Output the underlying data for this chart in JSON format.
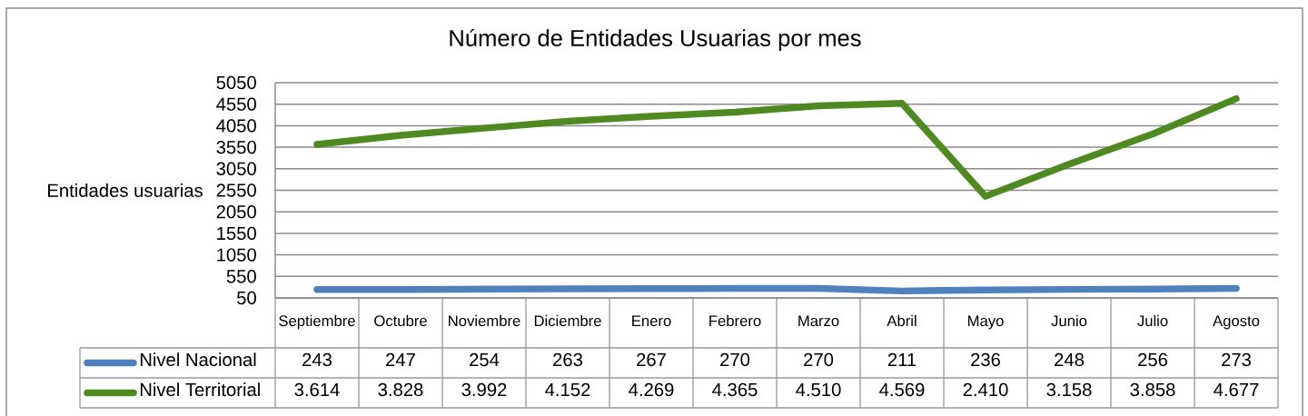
{
  "chart_data": {
    "type": "line",
    "title": "Número de Entidades Usuarias por mes",
    "ylabel": "Entidades usuarias",
    "categories": [
      "Septiembre",
      "Octubre",
      "Noviembre",
      "Diciembre",
      "Enero",
      "Febrero",
      "Marzo",
      "Abril",
      "Mayo",
      "Junio",
      "Julio",
      "Agosto"
    ],
    "series": [
      {
        "name": "Nivel Nacional",
        "color": "#4f81bd",
        "values": [
          243,
          247,
          254,
          263,
          267,
          270,
          270,
          211,
          236,
          248,
          256,
          273
        ],
        "value_labels": [
          "243",
          "247",
          "254",
          "263",
          "267",
          "270",
          "270",
          "211",
          "236",
          "248",
          "256",
          "273"
        ]
      },
      {
        "name": "Nivel Territorial",
        "color": "#4e8a21",
        "values": [
          3614,
          3828,
          3992,
          4152,
          4269,
          4365,
          4510,
          4569,
          2410,
          3158,
          3858,
          4677
        ],
        "value_labels": [
          "3.614",
          "3.828",
          "3.992",
          "4.152",
          "4.269",
          "4.365",
          "4.510",
          "4.569",
          "2.410",
          "3.158",
          "3.858",
          "4.677"
        ]
      }
    ],
    "ylim": [
      50,
      5050
    ],
    "yticks": [
      50,
      550,
      1050,
      1550,
      2050,
      2550,
      3050,
      3550,
      4050,
      4550,
      5050
    ],
    "grid": "y",
    "legend": "bottom",
    "marker": "none",
    "line_style": "solid"
  }
}
